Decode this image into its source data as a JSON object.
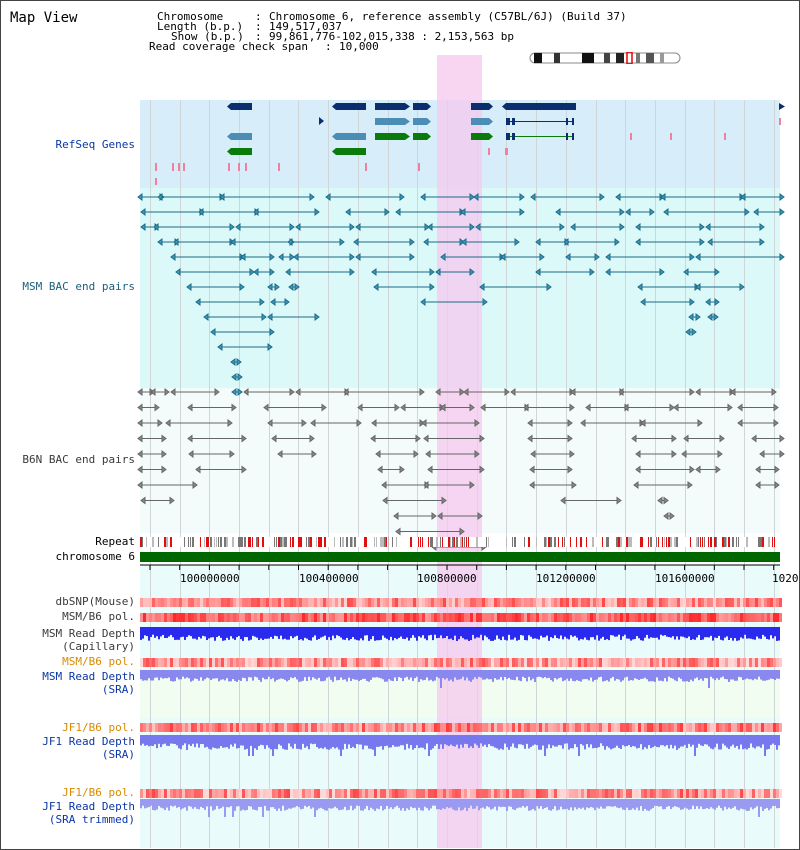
{
  "app": {
    "title": "Map View"
  },
  "info": {
    "chromosome_label": "Chromosome",
    "chromosome_value": "Chromosome 6, reference assembly (C57BL/6J) (Build 37)",
    "length_label": "Length (b.p.)",
    "length_value": "149,517,037",
    "show_label": "Show (b.p.)",
    "show_value": "99,861,776-102,015,338 : 2,153,563 bp",
    "coverage_label": "Read coverage check span",
    "coverage_value": "10,000"
  },
  "tracks": {
    "refseq": "RefSeq Genes",
    "msm_bac": "MSM BAC end pairs",
    "b6n_bac": "B6N BAC end pairs",
    "repeat": "Repeat",
    "chromosome": "chromosome 6",
    "dbsnp": "dbSNP(Mouse)",
    "msm_b6_pol_1": "MSM/B6 pol.",
    "msm_read_depth_cap_1": "MSM Read Depth",
    "msm_read_depth_cap_2": "(Capillary)",
    "msm_b6_pol_2": "MSM/B6 pol.",
    "msm_read_depth_sra_1": "MSM Read Depth",
    "msm_read_depth_sra_2": "(SRA)",
    "jf1_b6_pol_1": "JF1/B6 pol.",
    "jf1_read_depth_1": "JF1 Read Depth",
    "jf1_read_depth_2": "(SRA)",
    "jf1_b6_pol_2": "JF1/B6 pol.",
    "jf1_read_depth_trim_1": "JF1 Read Depth",
    "jf1_read_depth_trim_2": "(SRA trimmed)"
  },
  "axis": {
    "ticks": [
      "100000000",
      "100400000",
      "100800000",
      "101200000",
      "101600000",
      "1020"
    ]
  },
  "colors": {
    "refseq_bg": "#d7eefa",
    "msm_bg": "#dcf9f9",
    "b6n_bg": "#f3fafa",
    "highlight": "#f6d4f0",
    "chrom_band": "#006600",
    "gene_navy": "#0a2e6e",
    "gene_steel": "#4b8db5",
    "gene_green": "#0a7a0a",
    "msm_line": "#1d6b86",
    "b6n_line": "#666666",
    "depth_blue": "#2a2aee",
    "depth_light": "#8888ee"
  }
}
